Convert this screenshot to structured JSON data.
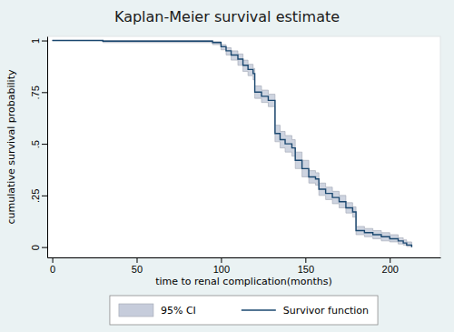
{
  "chart_data": {
    "type": "line",
    "title": "Kaplan-Meier survival estimate",
    "xlabel": "time to renal complication(months)",
    "ylabel": "cumulative survival probability",
    "x": [
      0,
      30,
      95,
      100,
      103,
      106,
      110,
      113,
      116,
      119,
      120,
      124,
      128,
      132,
      135,
      138,
      142,
      144,
      148,
      152,
      156,
      158,
      162,
      166,
      170,
      174,
      178,
      180,
      185,
      190,
      195,
      200,
      205,
      208,
      210,
      213
    ],
    "series": [
      {
        "name": "95% CI",
        "type": "area",
        "color": "#c6ccdb",
        "line_style": "step",
        "lower": [
          1,
          0.99,
          0.98,
          0.955,
          0.93,
          0.905,
          0.88,
          0.85,
          0.83,
          0.81,
          0.72,
          0.7,
          0.68,
          0.51,
          0.48,
          0.46,
          0.44,
          0.38,
          0.34,
          0.31,
          0.3,
          0.25,
          0.23,
          0.21,
          0.19,
          0.165,
          0.145,
          0.06,
          0.05,
          0.04,
          0.03,
          0.025,
          0.015,
          0.01,
          0.003,
          0
        ],
        "upper": [
          1,
          1,
          0.995,
          0.98,
          0.965,
          0.95,
          0.935,
          0.905,
          0.885,
          0.865,
          0.78,
          0.76,
          0.74,
          0.59,
          0.56,
          0.54,
          0.52,
          0.46,
          0.42,
          0.37,
          0.36,
          0.31,
          0.29,
          0.27,
          0.25,
          0.215,
          0.195,
          0.1,
          0.09,
          0.08,
          0.07,
          0.06,
          0.045,
          0.035,
          0.025,
          0.01
        ]
      },
      {
        "name": "Survivor function",
        "type": "line",
        "color": "#1a476f",
        "line_style": "step",
        "values": [
          1,
          0.997,
          0.99,
          0.97,
          0.95,
          0.93,
          0.91,
          0.88,
          0.86,
          0.84,
          0.75,
          0.73,
          0.71,
          0.55,
          0.52,
          0.5,
          0.48,
          0.42,
          0.38,
          0.34,
          0.33,
          0.28,
          0.26,
          0.24,
          0.22,
          0.19,
          0.17,
          0.08,
          0.07,
          0.06,
          0.05,
          0.04,
          0.03,
          0.02,
          0.01,
          0
        ]
      }
    ],
    "xlim": [
      -3,
      230
    ],
    "xticks": [
      0,
      50,
      100,
      150,
      200
    ],
    "ylim": [
      -0.05,
      1.02
    ],
    "yticks": [
      0,
      {
        "value": 0.25,
        "label": ".25"
      },
      {
        "value": 0.5,
        "label": ".5"
      },
      {
        "value": 0.75,
        "label": ".75"
      },
      1
    ],
    "grid": false,
    "legend": "bottom"
  }
}
